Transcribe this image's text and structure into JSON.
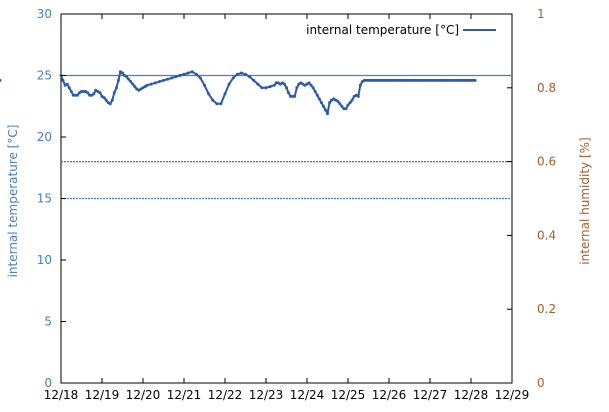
{
  "chart_data": {
    "type": "line",
    "ylabel": "internal temperature [°C]",
    "y2label": "internal humidity [%]",
    "legend_position": "top-right",
    "grid": false,
    "x_ticks": [
      "12/18",
      "12/19",
      "12/20",
      "12/21",
      "12/22",
      "12/23",
      "12/24",
      "12/25",
      "12/26",
      "12/27",
      "12/28",
      "12/29"
    ],
    "x_range": [
      "12/18",
      "12/29"
    ],
    "y_range": [
      0,
      30
    ],
    "y_ticks": [
      0,
      5,
      10,
      15,
      20,
      25,
      30
    ],
    "y2_range": [
      0,
      1
    ],
    "y2_ticks": [
      0,
      0.2,
      0.4,
      0.6,
      0.8,
      1
    ],
    "colors": {
      "temperature_axis": "#4a7ec0",
      "humidity_axis": "#a0622a",
      "temperature_series": "#2b5aa8",
      "upper_threshold": "#4a7ec0",
      "lower_threshold": "#4a7ec0",
      "humidity_line": "#a0622a"
    },
    "reference_lines": {
      "upper_temperature": 25,
      "lower_temperature": 15,
      "humidity": 0.6
    },
    "series": [
      {
        "name": "internal temperature [°C]",
        "x_day_offset_from_12_18": [
          0.0,
          0.05,
          0.1,
          0.15,
          0.2,
          0.25,
          0.3,
          0.35,
          0.4,
          0.45,
          0.5,
          0.55,
          0.6,
          0.65,
          0.7,
          0.75,
          0.8,
          0.85,
          0.9,
          0.95,
          1.0,
          1.05,
          1.1,
          1.15,
          1.2,
          1.25,
          1.3,
          1.35,
          1.4,
          1.45,
          1.5,
          1.55,
          1.6,
          1.65,
          1.7,
          1.75,
          1.8,
          1.85,
          1.9,
          1.95,
          2.0,
          2.05,
          2.1,
          2.2,
          2.3,
          2.4,
          2.5,
          2.6,
          2.7,
          2.8,
          2.9,
          3.0,
          3.1,
          3.2,
          3.3,
          3.4,
          3.5,
          3.6,
          3.7,
          3.8,
          3.9,
          4.0,
          4.1,
          4.2,
          4.3,
          4.4,
          4.5,
          4.6,
          4.7,
          4.8,
          4.9,
          5.0,
          5.1,
          5.2,
          5.25,
          5.3,
          5.35,
          5.4,
          5.45,
          5.5,
          5.55,
          5.6,
          5.65,
          5.7,
          5.75,
          5.8,
          5.85,
          5.9,
          5.95,
          6.0,
          6.05,
          6.1,
          6.15,
          6.2,
          6.25,
          6.3,
          6.35,
          6.4,
          6.45,
          6.5,
          6.55,
          6.6,
          6.65,
          6.7,
          6.75,
          6.8,
          6.85,
          6.9,
          6.95,
          7.0,
          7.05,
          7.1,
          7.15,
          7.2,
          7.25,
          7.3,
          7.35,
          7.4,
          7.45,
          7.5,
          7.55,
          7.6,
          7.65,
          7.7,
          7.75,
          7.8,
          7.85,
          7.9,
          7.95,
          8.0,
          8.05,
          8.1,
          8.15,
          8.2,
          8.25,
          8.3,
          8.35,
          8.4,
          8.45,
          8.5,
          8.55,
          8.6,
          8.65,
          8.7,
          8.75,
          8.8,
          8.85,
          8.9,
          8.95,
          9.0,
          9.05,
          9.1,
          9.15,
          9.2,
          9.25,
          9.3,
          9.35,
          9.4,
          9.45,
          9.5,
          9.55,
          9.6,
          9.65,
          9.7,
          9.75,
          9.8,
          9.85,
          9.9,
          9.95,
          10.0,
          10.05,
          10.1
        ],
        "values": [
          25.0,
          24.6,
          24.2,
          24.3,
          24.0,
          23.7,
          23.4,
          23.4,
          23.4,
          23.6,
          23.7,
          23.7,
          23.7,
          23.6,
          23.4,
          23.4,
          23.5,
          23.8,
          23.7,
          23.6,
          23.3,
          23.2,
          23.0,
          22.8,
          22.7,
          23.0,
          23.6,
          24.0,
          24.6,
          25.3,
          25.2,
          25.0,
          24.9,
          24.7,
          24.5,
          24.3,
          24.1,
          23.9,
          23.8,
          23.9,
          24.0,
          24.1,
          24.2,
          24.3,
          24.4,
          24.5,
          24.6,
          24.7,
          24.8,
          24.9,
          25.0,
          25.1,
          25.2,
          25.3,
          25.1,
          24.8,
          24.2,
          23.5,
          23.0,
          22.7,
          22.7,
          23.5,
          24.3,
          24.8,
          25.1,
          25.2,
          25.1,
          24.9,
          24.6,
          24.3,
          24.0,
          24.0,
          24.1,
          24.2,
          24.4,
          24.4,
          24.3,
          24.4,
          24.3,
          24.0,
          23.6,
          23.3,
          23.3,
          23.3,
          24.0,
          24.3,
          24.4,
          24.3,
          24.2,
          24.3,
          24.4,
          24.2,
          24.0,
          23.7,
          23.4,
          23.1,
          22.8,
          22.5,
          22.2,
          21.9,
          22.8,
          23.0,
          23.1,
          23.0,
          22.9,
          22.7,
          22.5,
          22.3,
          22.3,
          22.6,
          22.8,
          23.0,
          23.3,
          23.4,
          23.3,
          24.2,
          24.5,
          24.6,
          24.6,
          24.6,
          24.6,
          24.6,
          24.6,
          24.6,
          24.6,
          24.6,
          24.6,
          24.6,
          24.6,
          24.6,
          24.6,
          24.6,
          24.6,
          24.6,
          24.6,
          24.6,
          24.6,
          24.6,
          24.6,
          24.6,
          24.6,
          24.6,
          24.6,
          24.6,
          24.6,
          24.6,
          24.6,
          24.6,
          24.6,
          24.6,
          24.6,
          24.6,
          24.6,
          24.6,
          24.6,
          24.6,
          24.6,
          24.6,
          24.6,
          24.6,
          24.6,
          24.6,
          24.6,
          24.6,
          24.6,
          24.6,
          24.6,
          24.6,
          24.6,
          24.6,
          24.6,
          24.6,
          24.6
        ]
      }
    ]
  }
}
